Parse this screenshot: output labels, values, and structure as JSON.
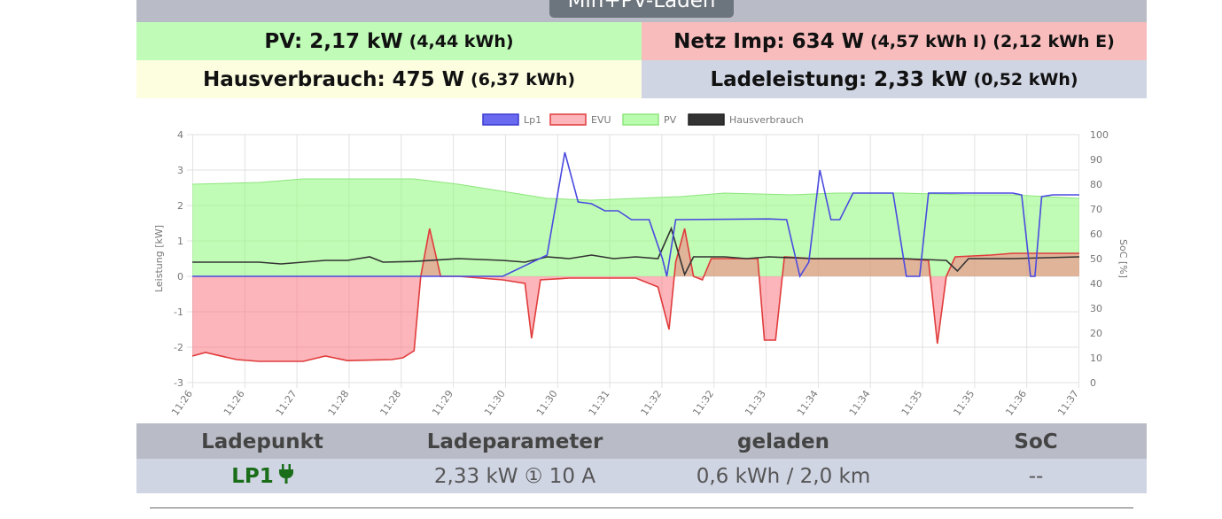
{
  "header": {
    "mode_label": "Min+PV-Laden",
    "pv": {
      "label": "PV: 2,17 kW",
      "sub": "(4,44 kWh)"
    },
    "netz": {
      "label": "Netz Imp: 634 W",
      "sub": "(4,57 kWh I) (2,12 kWh E)"
    },
    "haus": {
      "label": "Hausverbrauch: 475 W",
      "sub": "(6,37 kWh)"
    },
    "lade": {
      "label": "Ladeleistung: 2,33 kW",
      "sub": "(0,52 kWh)"
    }
  },
  "colors": {
    "pv_bg": "#c0fcb8",
    "netz_bg": "#f8bcbc",
    "haus_bg": "#fdfde0",
    "lade_bg": "#d0d5e4",
    "lp1": "#4a4ae0",
    "evu": "#e03c3c",
    "pv_line": "#8ee57e",
    "haus": "#333333"
  },
  "chart_data": {
    "type": "line",
    "legend_position": "top",
    "y_left": {
      "label": "Leistung [kW]",
      "min": -3,
      "max": 4,
      "ticks": [
        "4",
        "3",
        "2",
        "1",
        "0",
        "-1",
        "-2",
        "-3"
      ]
    },
    "y_right": {
      "label": "SoC [%]",
      "min": 0,
      "max": 100,
      "ticks": [
        "100",
        "90",
        "80",
        "70",
        "60",
        "50",
        "40",
        "30",
        "20",
        "10",
        "0"
      ]
    },
    "x_ticks": [
      "11:26",
      "11:26",
      "11:27",
      "11:28",
      "11:28",
      "11:29",
      "11:30",
      "11:30",
      "11:31",
      "11:32",
      "11:32",
      "11:33",
      "11:34",
      "11:34",
      "11:35",
      "11:35",
      "11:36",
      "11:37"
    ],
    "grid": true,
    "series": [
      {
        "name": "Lp1",
        "color": "#4a4ae0",
        "points": [
          [
            0,
            0
          ],
          [
            14,
            0
          ],
          [
            16,
            0.6
          ],
          [
            16.8,
            3.5
          ],
          [
            17.4,
            2.1
          ],
          [
            18,
            2.05
          ],
          [
            18.6,
            1.85
          ],
          [
            19.2,
            1.85
          ],
          [
            19.8,
            1.6
          ],
          [
            20.6,
            1.6
          ],
          [
            21.2,
            0.5
          ],
          [
            21.4,
            0
          ],
          [
            21.8,
            1.6
          ],
          [
            26,
            1.62
          ],
          [
            26.8,
            1.6
          ],
          [
            27.4,
            0
          ],
          [
            27.8,
            0.4
          ],
          [
            28.3,
            3.0
          ],
          [
            28.8,
            1.6
          ],
          [
            29.2,
            1.6
          ],
          [
            29.8,
            2.35
          ],
          [
            31.6,
            2.35
          ],
          [
            32.2,
            0
          ],
          [
            32.8,
            0
          ],
          [
            33.2,
            2.35
          ],
          [
            37,
            2.35
          ],
          [
            37.4,
            2.3
          ],
          [
            37.8,
            0
          ],
          [
            38,
            0
          ],
          [
            38.3,
            2.25
          ],
          [
            38.8,
            2.3
          ],
          [
            40,
            2.3
          ]
        ]
      },
      {
        "name": "EVU",
        "color": "#e03c3c",
        "points": [
          [
            0,
            -2.25
          ],
          [
            0.6,
            -2.15
          ],
          [
            2,
            -2.35
          ],
          [
            3,
            -2.4
          ],
          [
            5,
            -2.4
          ],
          [
            6,
            -2.25
          ],
          [
            7,
            -2.38
          ],
          [
            9,
            -2.35
          ],
          [
            9.5,
            -2.3
          ],
          [
            10,
            -2.1
          ],
          [
            10.3,
            0
          ],
          [
            10.7,
            1.35
          ],
          [
            11.2,
            0
          ],
          [
            12,
            0
          ],
          [
            14,
            -0.1
          ],
          [
            15,
            -0.2
          ],
          [
            15.3,
            -1.75
          ],
          [
            15.7,
            -0.1
          ],
          [
            17,
            -0.05
          ],
          [
            20,
            -0.05
          ],
          [
            21,
            -0.3
          ],
          [
            21.5,
            -1.5
          ],
          [
            21.8,
            0.4
          ],
          [
            22.2,
            1.35
          ],
          [
            22.6,
            0
          ],
          [
            23,
            -0.1
          ],
          [
            23.4,
            0.5
          ],
          [
            25.2,
            0.5
          ],
          [
            25.5,
            0.5
          ],
          [
            25.8,
            -1.8
          ],
          [
            26.3,
            -1.8
          ],
          [
            26.7,
            0.55
          ],
          [
            28,
            0.5
          ],
          [
            30,
            0.5
          ],
          [
            32,
            0.5
          ],
          [
            33.2,
            0.45
          ],
          [
            33.6,
            -1.9
          ],
          [
            34,
            0
          ],
          [
            34.4,
            0.55
          ],
          [
            36,
            0.6
          ],
          [
            37,
            0.65
          ],
          [
            40,
            0.65
          ]
        ]
      },
      {
        "name": "PV",
        "color": "#8ee57e",
        "points": [
          [
            0,
            2.6
          ],
          [
            3,
            2.65
          ],
          [
            5,
            2.75
          ],
          [
            8,
            2.75
          ],
          [
            10,
            2.75
          ],
          [
            12,
            2.6
          ],
          [
            14,
            2.4
          ],
          [
            16,
            2.2
          ],
          [
            18,
            2.15
          ],
          [
            22,
            2.25
          ],
          [
            24,
            2.35
          ],
          [
            27,
            2.3
          ],
          [
            29,
            2.35
          ],
          [
            32,
            2.35
          ],
          [
            35,
            2.3
          ],
          [
            37,
            2.3
          ],
          [
            40,
            2.2
          ]
        ]
      },
      {
        "name": "Hausverbrauch",
        "color": "#333333",
        "points": [
          [
            0,
            0.4
          ],
          [
            3,
            0.4
          ],
          [
            4,
            0.35
          ],
          [
            6,
            0.45
          ],
          [
            7,
            0.45
          ],
          [
            8,
            0.55
          ],
          [
            8.6,
            0.4
          ],
          [
            10,
            0.42
          ],
          [
            12,
            0.5
          ],
          [
            14,
            0.45
          ],
          [
            15,
            0.4
          ],
          [
            16,
            0.55
          ],
          [
            17,
            0.5
          ],
          [
            18,
            0.6
          ],
          [
            19,
            0.5
          ],
          [
            20,
            0.55
          ],
          [
            21,
            0.5
          ],
          [
            21.6,
            1.35
          ],
          [
            22.2,
            0.05
          ],
          [
            22.6,
            0.55
          ],
          [
            24,
            0.55
          ],
          [
            25,
            0.5
          ],
          [
            26,
            0.55
          ],
          [
            28,
            0.5
          ],
          [
            30,
            0.5
          ],
          [
            32,
            0.5
          ],
          [
            34,
            0.45
          ],
          [
            34.5,
            0.15
          ],
          [
            35,
            0.5
          ],
          [
            37,
            0.5
          ],
          [
            40,
            0.55
          ]
        ]
      }
    ]
  },
  "table": {
    "headers": [
      "Ladepunkt",
      "Ladeparameter",
      "geladen",
      "SoC"
    ],
    "rows": [
      {
        "name": "LP1",
        "plug_icon": "plug-icon",
        "param": "2,33 kW ① 10 A",
        "charged": "0,6 kWh / 2,0 km",
        "soc": "--"
      }
    ]
  }
}
